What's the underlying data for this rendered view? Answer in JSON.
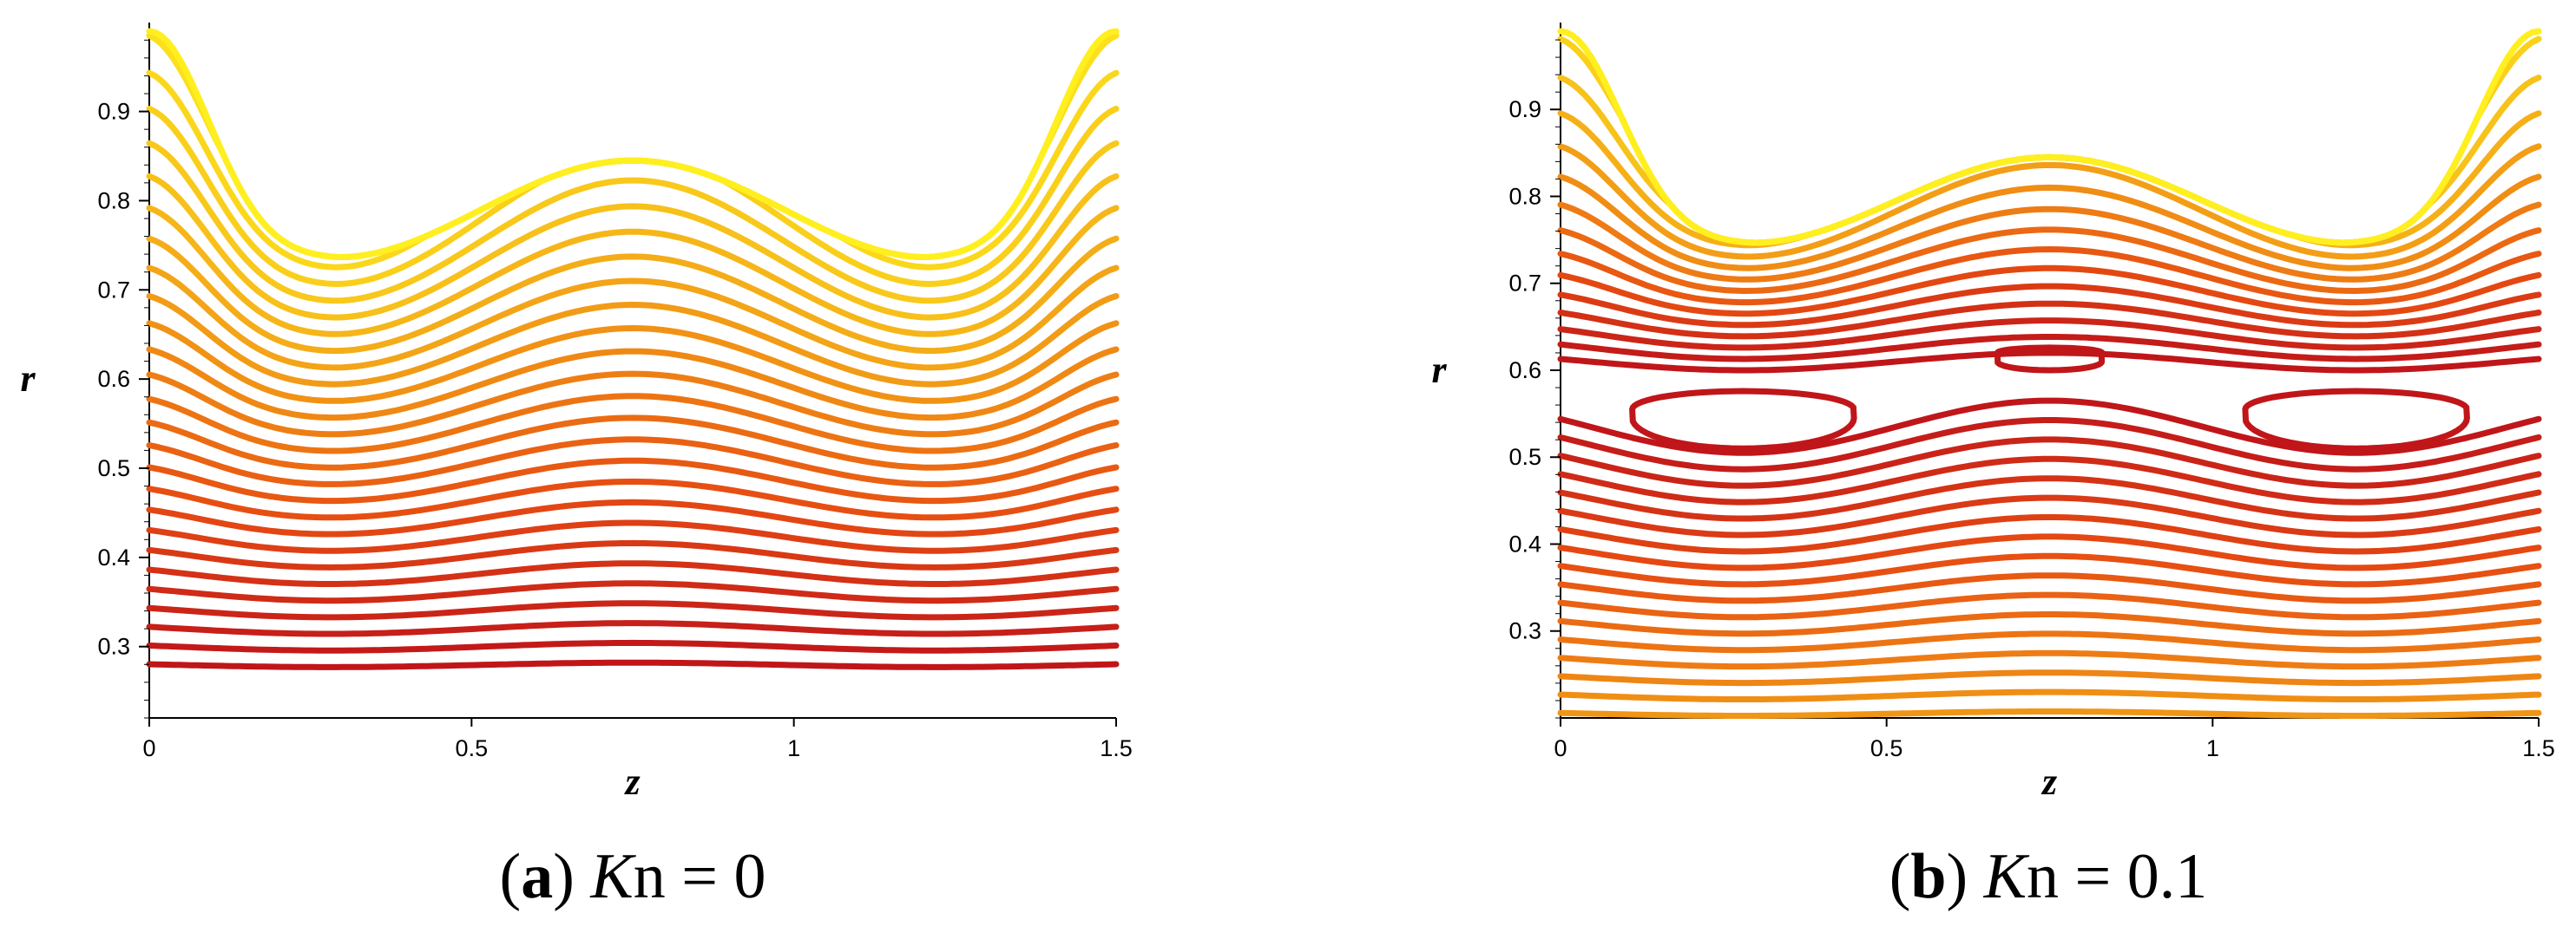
{
  "chart_data": [
    {
      "type": "contour",
      "caption": {
        "letter": "a",
        "var_italic": "K",
        "var_rest": "n",
        "rel": " = ",
        "value": "0"
      },
      "xlabel": "z",
      "ylabel": "r",
      "xlim": [
        0,
        1.5
      ],
      "ylim": [
        0.22,
        0.99
      ],
      "xticks": [
        "0",
        "0.5",
        "1",
        "1.5"
      ],
      "yticks": [
        "0.3",
        "0.4",
        "0.5",
        "0.6",
        "0.7",
        "0.8",
        "0.9"
      ],
      "wall": {
        "shape": "h(z) = 0.5 + 0.5*cos(2*pi*z) ... peristaltic wall",
        "r_at_z0": 0.99,
        "r_min": 0.735,
        "r_mid": 0.845
      },
      "colormap": [
        "#c0161a",
        "#e64a12",
        "#f08a14",
        "#f7c21a",
        "#ffef1e"
      ],
      "levels": {
        "count": 28,
        "start_r": 0.28,
        "end_r": 0.84,
        "bottom_amp": 0.005,
        "top_amp": 0.1
      },
      "closed_loops": []
    },
    {
      "type": "contour",
      "caption": {
        "letter": "b",
        "var_italic": "K",
        "var_rest": "n",
        "rel": " = ",
        "value": "0.1"
      },
      "xlabel": "z",
      "ylabel": "r",
      "xlim": [
        0,
        1.5
      ],
      "ylim": [
        0.2,
        0.99
      ],
      "xticks": [
        "0",
        "0.5",
        "1",
        "1.5"
      ],
      "yticks": [
        "0.3",
        "0.4",
        "0.5",
        "0.6",
        "0.7",
        "0.8",
        "0.9"
      ],
      "wall": {
        "r_at_z0": 0.99,
        "r_min": 0.745,
        "r_mid": 0.845
      },
      "colormap": [
        "#c0161a",
        "#e64a12",
        "#f08a14",
        "#f7c21a",
        "#ffef1e"
      ],
      "levels_lower": {
        "count": 17,
        "start_r": 0.205,
        "end_r": 0.535,
        "amp_start": 0.005,
        "amp_end": 0.06
      },
      "levels_upper": {
        "count": 16,
        "start_r": 0.61,
        "end_r": 0.845,
        "amp_start": 0.02,
        "amp_end": 0.1
      },
      "closed_loops": [
        {
          "z_center": 0.28,
          "r_top": 0.58,
          "r_bottom": 0.51,
          "z_halfwidth": 0.17
        },
        {
          "z_center": 1.22,
          "r_top": 0.58,
          "r_bottom": 0.51,
          "z_halfwidth": 0.17
        },
        {
          "z_center": 0.75,
          "r_top": 0.62,
          "r_bottom": 0.6,
          "z_halfwidth": 0.08
        }
      ]
    }
  ]
}
